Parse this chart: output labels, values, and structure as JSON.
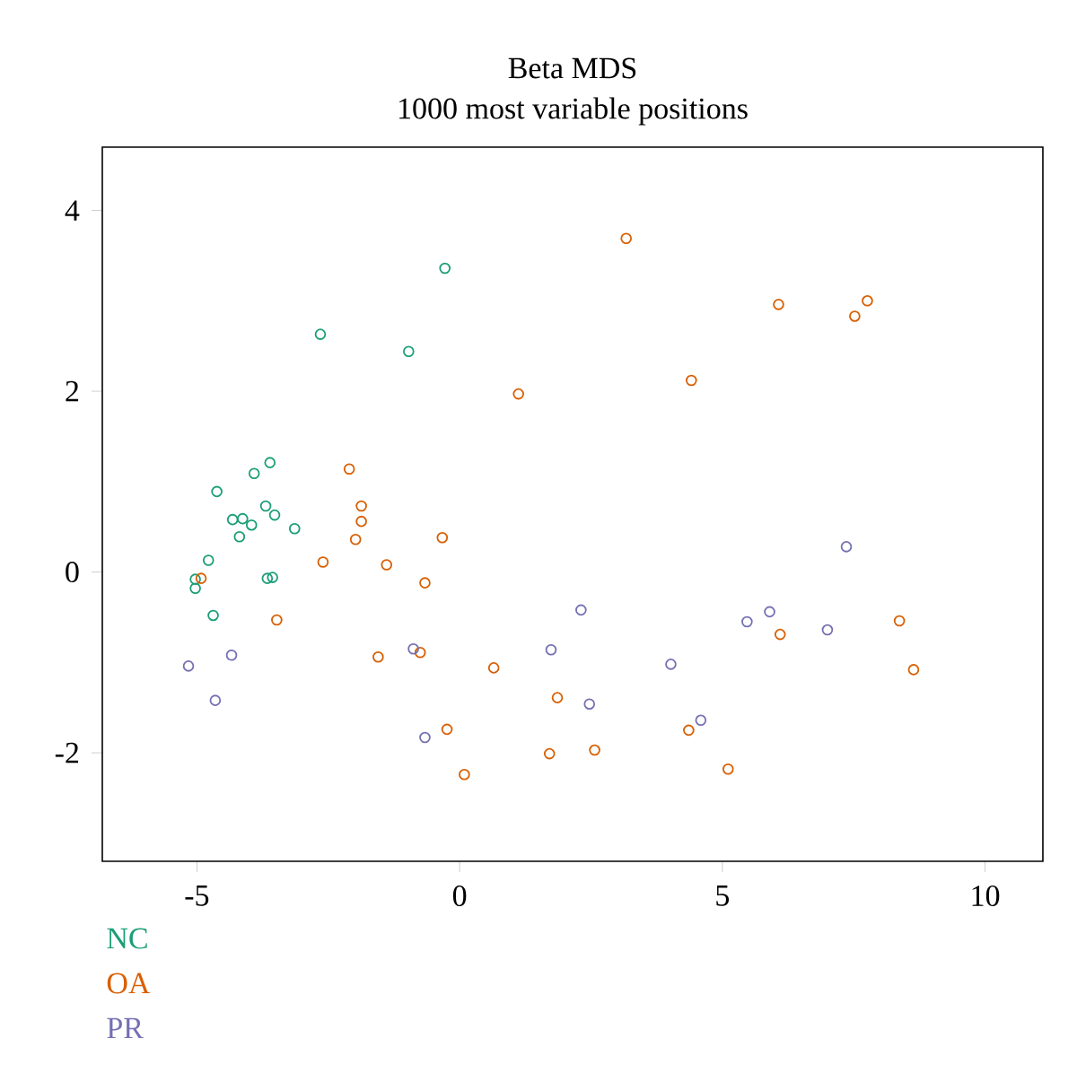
{
  "chart_data": {
    "type": "scatter",
    "title": "Beta MDS",
    "subtitle": "1000 most variable positions",
    "xlim": [
      -6.8,
      11.1
    ],
    "ylim": [
      -3.2,
      4.7
    ],
    "xticks": [
      -5,
      0,
      5,
      10
    ],
    "yticks": [
      -2,
      0,
      2,
      4
    ],
    "marker": "circle",
    "legend": "bottom left",
    "grid": false,
    "series": [
      {
        "name": "NC",
        "color": "#1b9e77",
        "x": [
          -0.28,
          -2.65,
          -0.97,
          -3.61,
          -3.91,
          -4.62,
          -3.69,
          -3.52,
          -4.32,
          -4.13,
          -3.96,
          -3.14,
          -4.19,
          -4.78,
          -5.03,
          -5.03,
          -4.69,
          -3.66,
          -3.56
        ],
        "values": [
          3.36,
          2.63,
          2.44,
          1.21,
          1.09,
          0.89,
          0.73,
          0.63,
          0.58,
          0.59,
          0.52,
          0.48,
          0.39,
          0.13,
          -0.08,
          -0.18,
          -0.48,
          -0.07,
          -0.06
        ]
      },
      {
        "name": "OA",
        "color": "#d95f02",
        "x": [
          1.12,
          -2.1,
          -1.87,
          -1.87,
          -1.98,
          -0.33,
          -2.6,
          -1.39,
          -0.66,
          -4.92,
          -3.48,
          -1.55,
          -0.75,
          0.65,
          1.86,
          -0.24,
          1.71,
          0.09,
          3.17,
          6.07,
          7.76,
          7.52,
          4.41,
          6.1,
          8.37,
          8.64,
          2.57,
          4.36,
          5.11
        ],
        "values": [
          1.97,
          1.14,
          0.73,
          0.56,
          0.36,
          0.38,
          0.11,
          0.08,
          -0.12,
          -0.07,
          -0.53,
          -0.94,
          -0.89,
          -1.06,
          -1.39,
          -1.74,
          -2.01,
          -2.24,
          3.69,
          2.96,
          3.0,
          2.83,
          2.12,
          -0.69,
          -0.54,
          -1.08,
          -1.97,
          -1.75,
          -2.18
        ]
      },
      {
        "name": "PR",
        "color": "#7570b3",
        "x": [
          -5.16,
          -4.34,
          -4.65,
          -0.88,
          -0.66,
          1.74,
          7.36,
          2.31,
          4.02,
          2.47,
          4.59,
          5.47,
          5.9,
          7.0
        ],
        "values": [
          -1.04,
          -0.92,
          -1.42,
          -0.85,
          -1.83,
          -0.86,
          0.28,
          -0.42,
          -1.02,
          -1.46,
          -1.64,
          -0.55,
          -0.44,
          -0.64
        ]
      }
    ]
  }
}
